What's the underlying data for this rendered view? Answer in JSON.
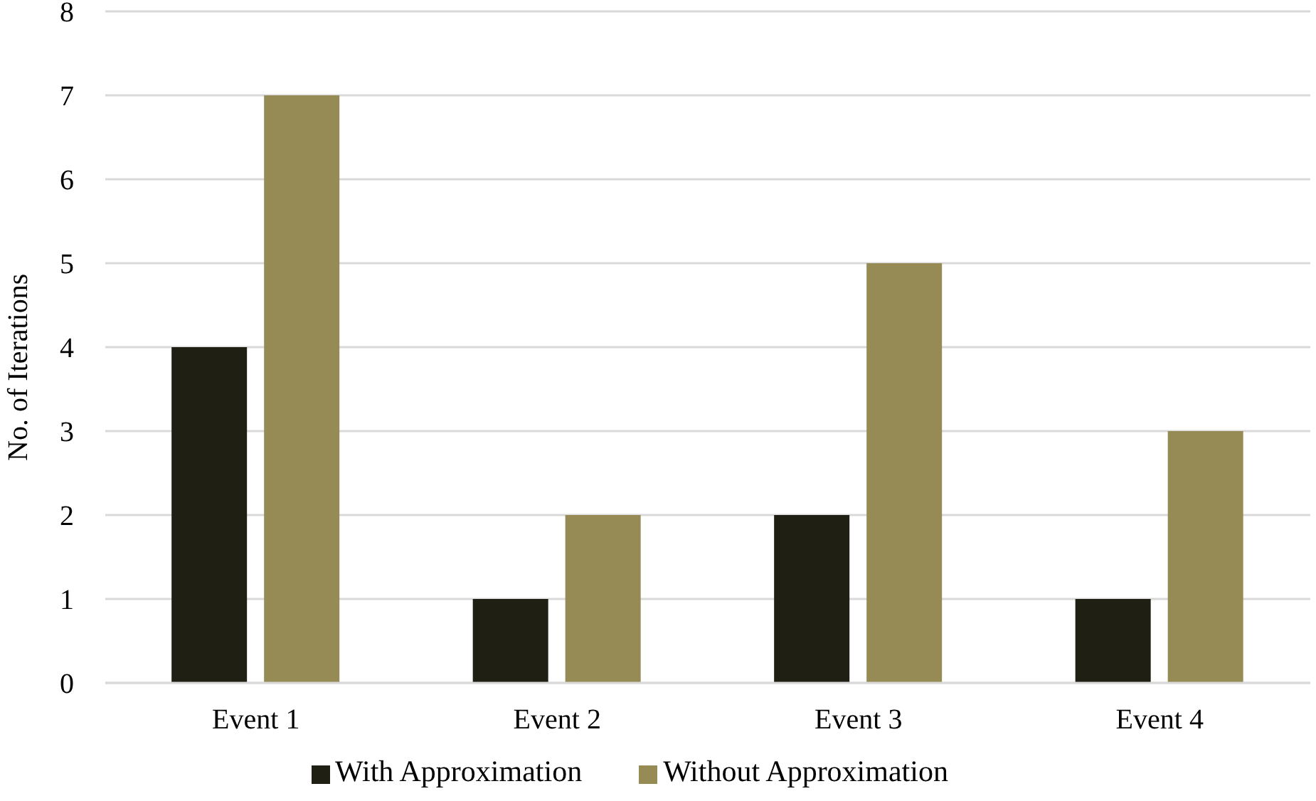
{
  "chart_data": {
    "type": "bar",
    "ylabel": "No. of Iterations",
    "categories": [
      "Event 1",
      "Event 2",
      "Event 3",
      "Event 4"
    ],
    "series": [
      {
        "name": "With Approximation",
        "color": "#201f14",
        "values": [
          4,
          1,
          2,
          1
        ]
      },
      {
        "name": "Without Approximation",
        "color": "#968b55",
        "values": [
          7,
          2,
          5,
          3
        ]
      }
    ],
    "ylim": [
      0,
      8
    ],
    "yticks": [
      0,
      1,
      2,
      3,
      4,
      5,
      6,
      7,
      8
    ],
    "grid": "y",
    "legend": "bottom"
  }
}
